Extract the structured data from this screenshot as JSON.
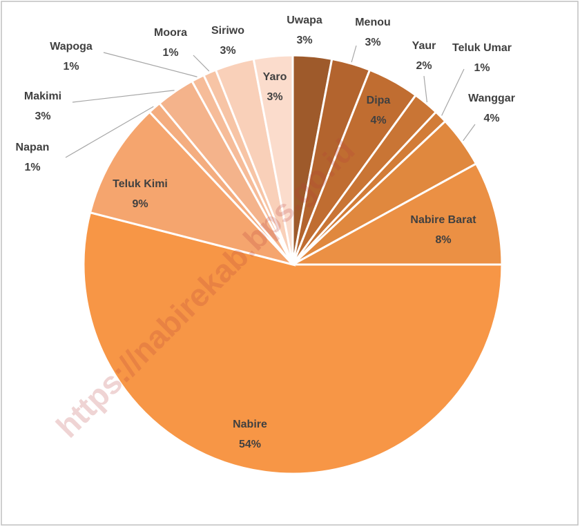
{
  "chart_data": {
    "type": "pie",
    "categories": [
      "Uwapa",
      "Menou",
      "Dipa",
      "Yaur",
      "Teluk Umar",
      "Wanggar",
      "Nabire Barat",
      "Nabire",
      "Teluk Kimi",
      "Napan",
      "Makimi",
      "Wapoga",
      "Moora",
      "Siriwo",
      "Yaro"
    ],
    "values": [
      3,
      3,
      4,
      2,
      1,
      4,
      8,
      54,
      9,
      1,
      3,
      1,
      1,
      3,
      3
    ],
    "value_labels": [
      "3%",
      "3%",
      "4%",
      "2%",
      "1%",
      "4%",
      "8%",
      "54%",
      "9%",
      "1%",
      "3%",
      "1%",
      "1%",
      "3%",
      "3%"
    ],
    "colors": [
      "#9e5a2b",
      "#b3642e",
      "#c06d31",
      "#c97535",
      "#d27c37",
      "#e0883e",
      "#eb9044",
      "#f79646",
      "#f5a56e",
      "#f4ad7f",
      "#f4b38b",
      "#f6bc99",
      "#f7c4a5",
      "#f9d0b9",
      "#fbdccc"
    ],
    "watermark": "https://nabirekab.bps.go.id"
  }
}
